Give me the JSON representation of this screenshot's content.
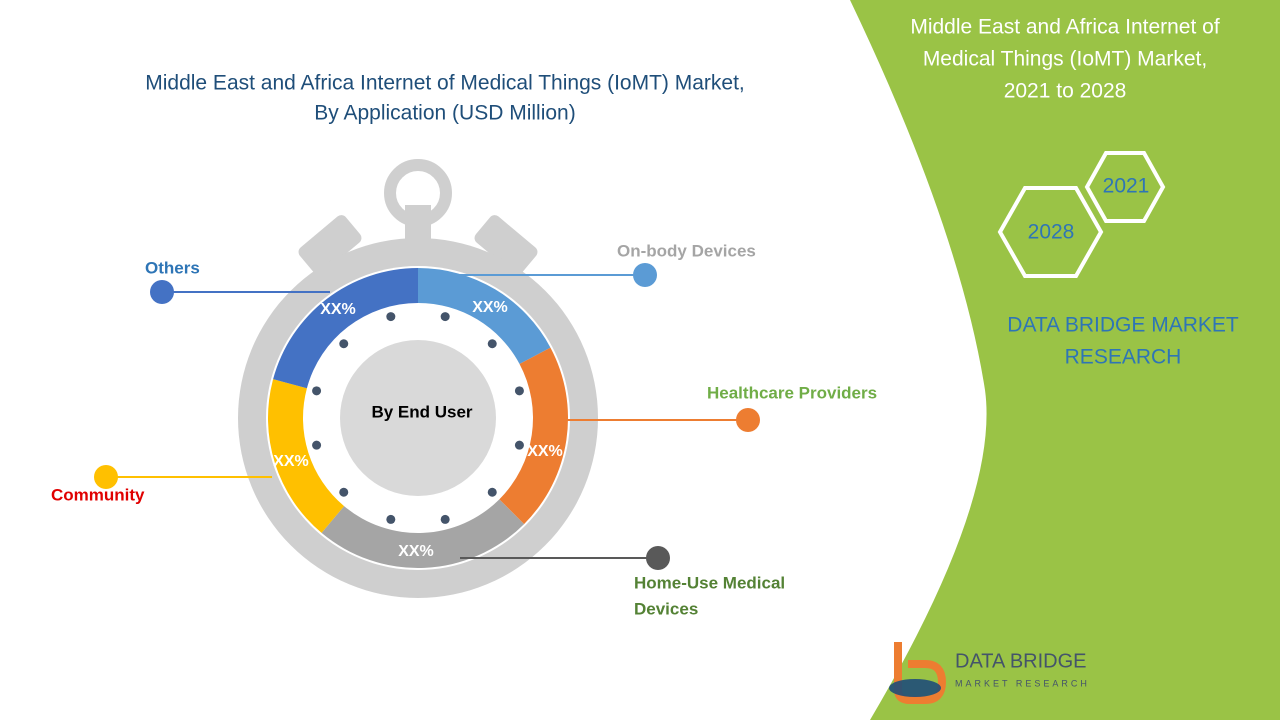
{
  "title": [
    "Middle East and Africa Internet of Medical Things (IoMT) Market,",
    "By Application  (USD Million)"
  ],
  "center_label": "By End User",
  "segments": [
    {
      "label": "On-body  Devices",
      "value_label": "XX%"
    },
    {
      "label": "Healthcare  Providers",
      "value_label": "XX%"
    },
    {
      "label": [
        "Home-Use Medical",
        "Devices"
      ],
      "value_label": "XX%"
    },
    {
      "label": "Community",
      "value_label": "XX%"
    },
    {
      "label": "Others",
      "value_label": "XX%"
    }
  ],
  "side_panel": {
    "title": [
      "Middle East and Africa Internet of",
      "Medical Things (IoMT) Market,",
      "2021 to 2028"
    ],
    "years": [
      "2021",
      "2028"
    ],
    "brand": [
      "DATA BRIDGE MARKET",
      "RESEARCH"
    ]
  },
  "logo": {
    "name": "DATA BRIDGE",
    "tagline": "MARKET RESEARCH"
  }
}
